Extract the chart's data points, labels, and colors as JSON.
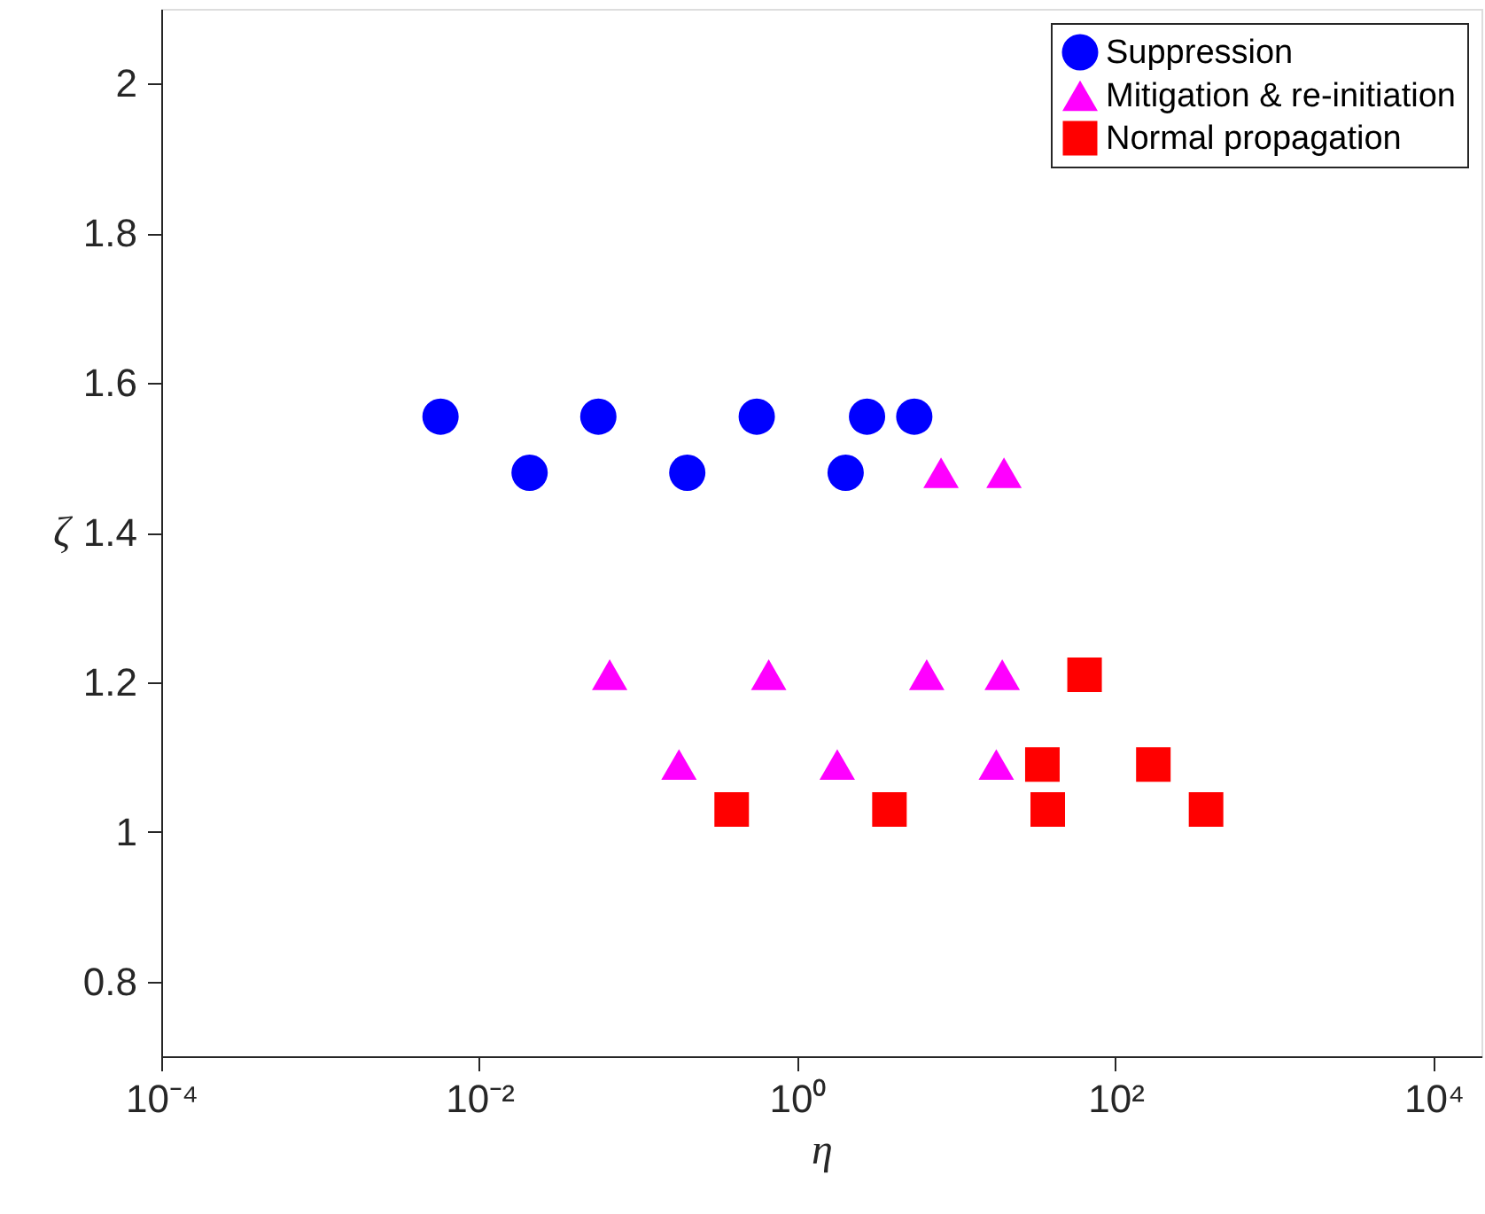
{
  "chart_data": {
    "type": "scatter",
    "xlabel": "η",
    "ylabel": "ζ",
    "log": "x",
    "xlim": [
      0.0001,
      20000
    ],
    "ylim": [
      0.7,
      2.1
    ],
    "xticks": [
      {
        "value": 0.0001,
        "label": "10⁻⁴"
      },
      {
        "value": 0.01,
        "label": "10⁻²"
      },
      {
        "value": 1,
        "label": "10⁰"
      },
      {
        "value": 100,
        "label": "10²"
      },
      {
        "value": 10000,
        "label": "10⁴"
      }
    ],
    "yticks": [
      0.8,
      1,
      1.2,
      1.4,
      1.6,
      1.8,
      2
    ],
    "grid": false,
    "legend": "top right",
    "series": [
      {
        "name": "Suppression",
        "color": "#0000ff",
        "marker": "circle",
        "x": [
          0.0057,
          0.0207,
          0.056,
          0.203,
          0.555,
          2.01,
          2.74,
          5.43
        ],
        "values": [
          1.555,
          1.48,
          1.555,
          1.48,
          1.555,
          1.48,
          1.555,
          1.555
        ]
      },
      {
        "name": "Mitigation & re-initiation",
        "color": "#ff00ff",
        "marker": "triangle",
        "x": [
          8.0,
          19.9,
          0.066,
          0.66,
          6.5,
          19.4,
          0.18,
          1.78,
          17.8
        ],
        "values": [
          1.48,
          1.48,
          1.21,
          1.21,
          1.21,
          1.21,
          1.09,
          1.09,
          1.09
        ]
      },
      {
        "name": "Normal propagation",
        "color": "#ff0000",
        "marker": "square",
        "x": [
          63.9,
          34.7,
          173,
          0.386,
          3.79,
          37.5,
          371
        ],
        "values": [
          1.21,
          1.09,
          1.09,
          1.03,
          1.03,
          1.03,
          1.03
        ]
      }
    ]
  }
}
